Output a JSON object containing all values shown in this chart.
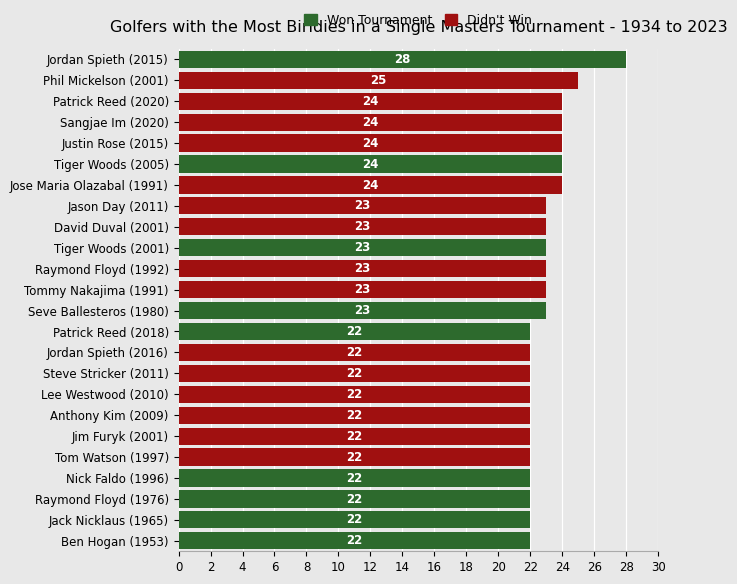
{
  "title": "Golfers with the Most Biridies in a Single Masters Tournament - 1934 to 2023",
  "golfers": [
    {
      "name": "Jordan Spieth (2015)",
      "birdies": 28,
      "won": true
    },
    {
      "name": "Phil Mickelson (2001)",
      "birdies": 25,
      "won": false
    },
    {
      "name": "Patrick Reed (2020)",
      "birdies": 24,
      "won": false
    },
    {
      "name": "Sangjae Im (2020)",
      "birdies": 24,
      "won": false
    },
    {
      "name": "Justin Rose (2015)",
      "birdies": 24,
      "won": false
    },
    {
      "name": "Tiger Woods (2005)",
      "birdies": 24,
      "won": true
    },
    {
      "name": "Jose Maria Olazabal (1991)",
      "birdies": 24,
      "won": false
    },
    {
      "name": "Jason Day (2011)",
      "birdies": 23,
      "won": false
    },
    {
      "name": "David Duval (2001)",
      "birdies": 23,
      "won": false
    },
    {
      "name": "Tiger Woods (2001)",
      "birdies": 23,
      "won": true
    },
    {
      "name": "Raymond Floyd (1992)",
      "birdies": 23,
      "won": false
    },
    {
      "name": "Tommy Nakajima (1991)",
      "birdies": 23,
      "won": false
    },
    {
      "name": "Seve Ballesteros (1980)",
      "birdies": 23,
      "won": true
    },
    {
      "name": "Patrick Reed (2018)",
      "birdies": 22,
      "won": true
    },
    {
      "name": "Jordan Spieth (2016)",
      "birdies": 22,
      "won": false
    },
    {
      "name": "Steve Stricker (2011)",
      "birdies": 22,
      "won": false
    },
    {
      "name": "Lee Westwood (2010)",
      "birdies": 22,
      "won": false
    },
    {
      "name": "Anthony Kim (2009)",
      "birdies": 22,
      "won": false
    },
    {
      "name": "Jim Furyk (2001)",
      "birdies": 22,
      "won": false
    },
    {
      "name": "Tom Watson (1997)",
      "birdies": 22,
      "won": false
    },
    {
      "name": "Nick Faldo (1996)",
      "birdies": 22,
      "won": true
    },
    {
      "name": "Raymond Floyd (1976)",
      "birdies": 22,
      "won": true
    },
    {
      "name": "Jack Nicklaus (1965)",
      "birdies": 22,
      "won": true
    },
    {
      "name": "Ben Hogan (1953)",
      "birdies": 22,
      "won": true
    }
  ],
  "won_color": "#2d6a2d",
  "didnt_win_color": "#a01010",
  "label_color": "#ffffff",
  "background_color": "#e8e8e8",
  "plot_background_color": "#e8e8e8",
  "xlim": [
    0,
    30
  ],
  "xticks": [
    0,
    2,
    4,
    6,
    8,
    10,
    12,
    14,
    16,
    18,
    20,
    22,
    24,
    26,
    28,
    30
  ],
  "title_fontsize": 11.5,
  "tick_fontsize": 8.5,
  "label_fontsize": 8.5,
  "legend_fontsize": 9,
  "bar_height": 0.82
}
